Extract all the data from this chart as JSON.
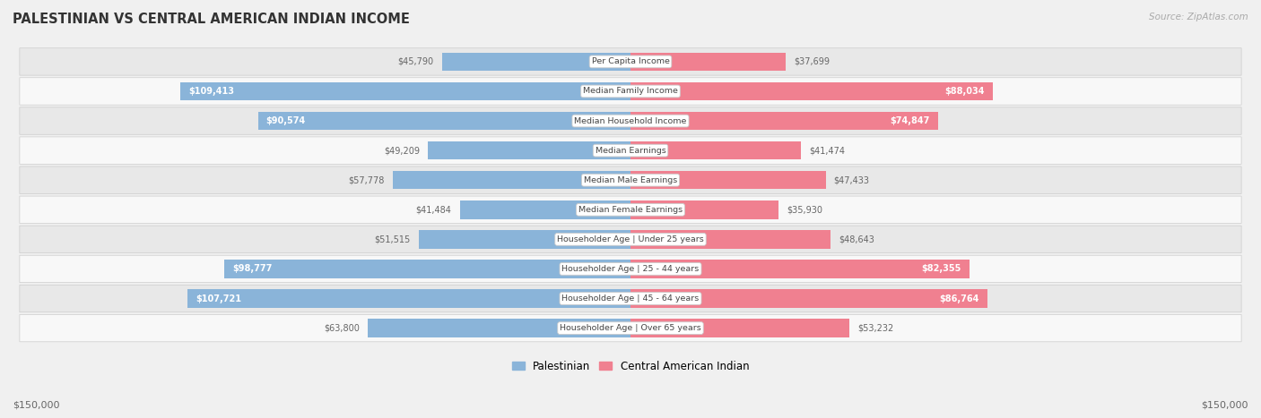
{
  "title": "PALESTINIAN VS CENTRAL AMERICAN INDIAN INCOME",
  "source": "Source: ZipAtlas.com",
  "categories": [
    "Per Capita Income",
    "Median Family Income",
    "Median Household Income",
    "Median Earnings",
    "Median Male Earnings",
    "Median Female Earnings",
    "Householder Age | Under 25 years",
    "Householder Age | 25 - 44 years",
    "Householder Age | 45 - 64 years",
    "Householder Age | Over 65 years"
  ],
  "palestinian_values": [
    45790,
    109413,
    90574,
    49209,
    57778,
    41484,
    51515,
    98777,
    107721,
    63800
  ],
  "central_american_indian_values": [
    37699,
    88034,
    74847,
    41474,
    47433,
    35930,
    48643,
    82355,
    86764,
    53232
  ],
  "palestinian_labels": [
    "$45,790",
    "$109,413",
    "$90,574",
    "$49,209",
    "$57,778",
    "$41,484",
    "$51,515",
    "$98,777",
    "$107,721",
    "$63,800"
  ],
  "central_american_indian_labels": [
    "$37,699",
    "$88,034",
    "$74,847",
    "$41,474",
    "$47,433",
    "$35,930",
    "$48,643",
    "$82,355",
    "$86,764",
    "$53,232"
  ],
  "max_value": 150000,
  "bar_color_palestinian": "#8ab4d9",
  "bar_color_central": "#f08090",
  "background_color": "#f0f0f0",
  "row_even_color": "#f8f8f8",
  "row_odd_color": "#e8e8e8",
  "legend_palestinian": "Palestinian",
  "legend_central": "Central American Indian",
  "xlabel_left": "$150,000",
  "xlabel_right": "$150,000",
  "inside_threshold": 65000
}
